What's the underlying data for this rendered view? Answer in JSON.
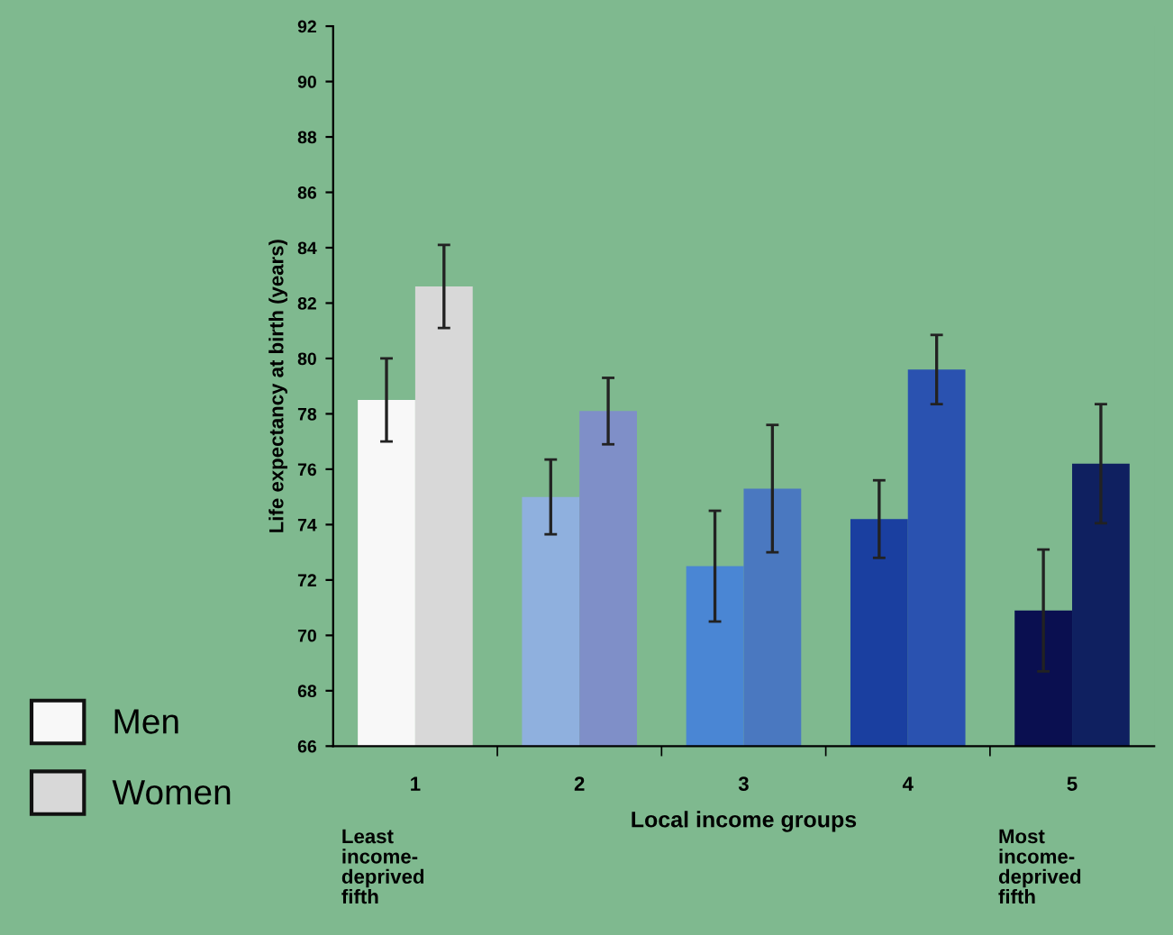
{
  "chart_data": {
    "type": "bar",
    "xlabel": "Local income groups",
    "ylabel": "Life expectancy at birth (years)",
    "categories": [
      "1",
      "2",
      "3",
      "4",
      "5"
    ],
    "series": [
      {
        "name": "Men",
        "color": "#f8f8f8",
        "colors": [
          "#f8f8f8",
          "#8fb0de",
          "#4a86d4",
          "#1a3fa0",
          "#0a0f50"
        ],
        "values": [
          78.5,
          75.0,
          72.5,
          74.2,
          70.9
        ],
        "errors": [
          1.5,
          1.35,
          2.0,
          1.4,
          2.2
        ]
      },
      {
        "name": "Women",
        "color": "#d8d8d8",
        "colors": [
          "#d8d8d8",
          "#7f8fc8",
          "#4a78c0",
          "#2a52b0",
          "#0f2060"
        ],
        "values": [
          82.6,
          78.1,
          75.3,
          79.6,
          76.2
        ],
        "errors": [
          1.5,
          1.2,
          2.3,
          1.25,
          2.15
        ]
      }
    ],
    "ylim": [
      66,
      92
    ],
    "yticks": [
      66,
      68,
      70,
      72,
      74,
      76,
      78,
      80,
      82,
      84,
      86,
      88,
      90,
      92
    ],
    "annotations": [
      "Least\nincome-\ndeprived\nfifth",
      "Most\nincome-\ndeprived\nfifth"
    ],
    "grid": false,
    "legend": "left"
  }
}
